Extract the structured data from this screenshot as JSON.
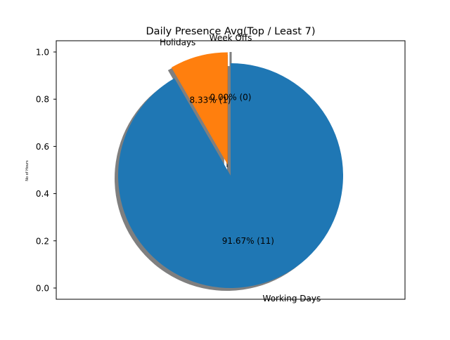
{
  "chart_data": {
    "type": "pie",
    "title": "Daily Presence Avg(Top / Least 7)",
    "ylabel": "No of Hours",
    "xlabel": "",
    "ylim": [
      0,
      1.0
    ],
    "yticks": [
      "0.0",
      "0.2",
      "0.4",
      "0.6",
      "0.8",
      "1.0"
    ],
    "slices": [
      {
        "label": "Week Offs",
        "value": 0,
        "pct_label": "0.00%  (0)",
        "color": "#7f7f7f",
        "exploded": true
      },
      {
        "label": "Holidays",
        "value": 1,
        "pct_label": "8.33%  (1)",
        "color": "#ff7f0e",
        "exploded": true
      },
      {
        "label": "Working Days",
        "value": 11,
        "pct_label": "91.67%  (11)",
        "color": "#1f77b4",
        "exploded": false
      }
    ],
    "shadow": true,
    "grid": false
  }
}
